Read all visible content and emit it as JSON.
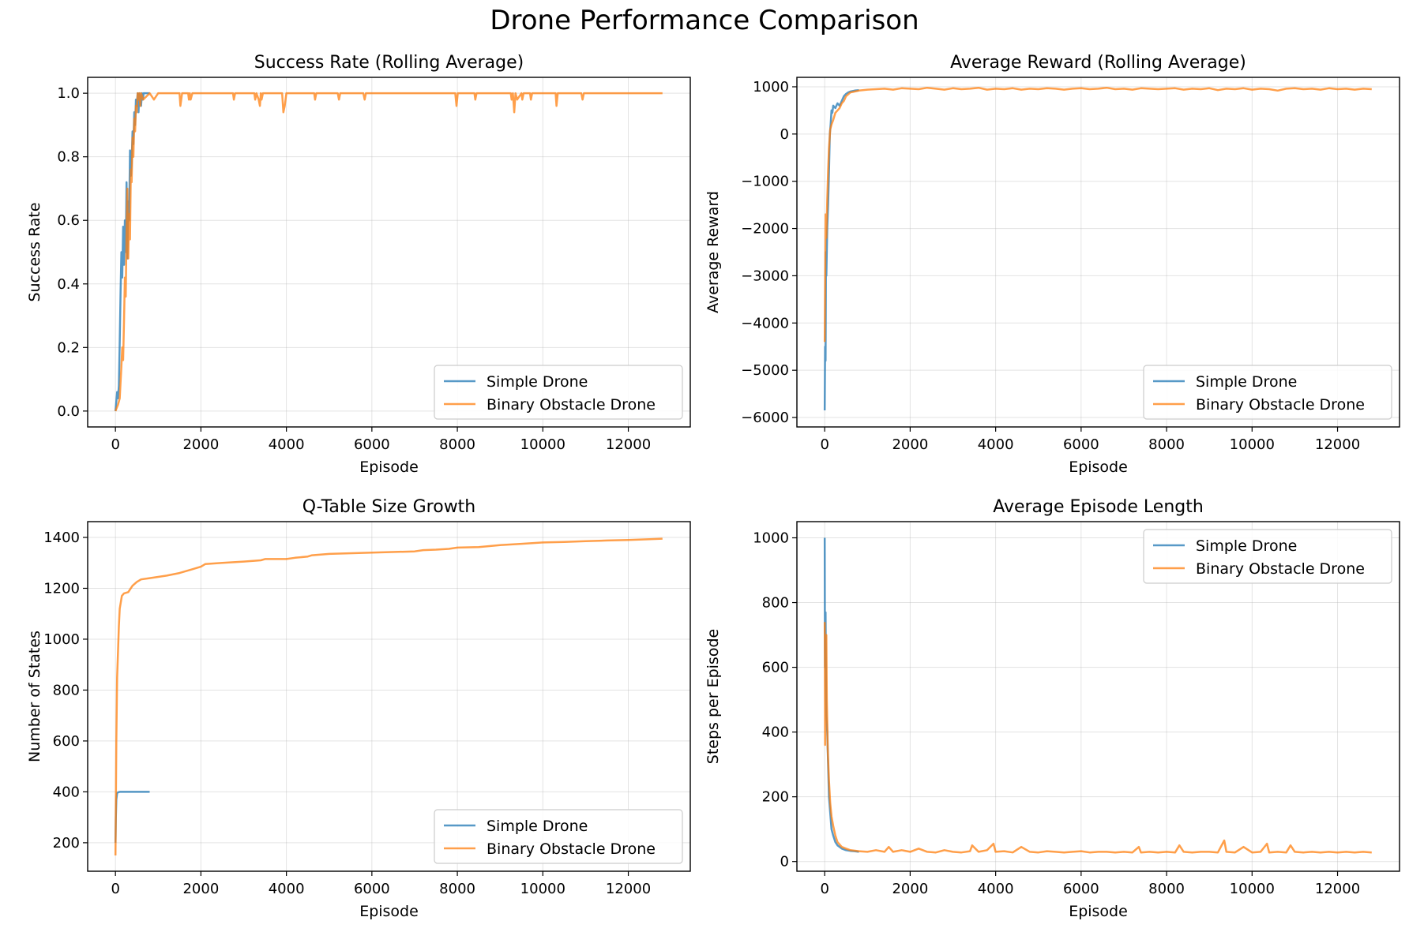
{
  "figure": {
    "title": "Drone Performance Comparison"
  },
  "colors": {
    "simple": "#1f77b4",
    "binary": "#ff7f0e",
    "grid": "#b0b0b0"
  },
  "chart_data": [
    {
      "type": "line",
      "title": "Success Rate (Rolling Average)",
      "xlabel": "Episode",
      "ylabel": "Success Rate",
      "xlim": [
        -650,
        13450
      ],
      "ylim": [
        -0.05,
        1.05
      ],
      "xticks": [
        0,
        2000,
        4000,
        6000,
        8000,
        10000,
        12000
      ],
      "yticks": [
        0.0,
        0.2,
        0.4,
        0.6,
        0.8,
        1.0
      ],
      "ytick_labels": [
        "0.0",
        "0.2",
        "0.4",
        "0.6",
        "0.8",
        "1.0"
      ],
      "grid": true,
      "legend": "lower right",
      "series": [
        {
          "name": "Simple Drone",
          "x": [
            0,
            40,
            60,
            80,
            100,
            120,
            140,
            160,
            180,
            200,
            220,
            240,
            260,
            280,
            300,
            320,
            340,
            360,
            380,
            400,
            420,
            440,
            460,
            480,
            500,
            520,
            540,
            560,
            580,
            600,
            620,
            640,
            660,
            700,
            800
          ],
          "y": [
            0.0,
            0.06,
            0.04,
            0.08,
            0.22,
            0.38,
            0.5,
            0.42,
            0.58,
            0.46,
            0.6,
            0.5,
            0.72,
            0.48,
            0.66,
            0.6,
            0.82,
            0.74,
            0.78,
            0.88,
            0.84,
            0.94,
            0.9,
            0.98,
            0.96,
            1.0,
            0.94,
            1.0,
            0.98,
            0.96,
            1.0,
            0.98,
            1.0,
            1.0,
            1.0
          ]
        },
        {
          "name": "Binary Obstacle Drone",
          "x": [
            0,
            60,
            100,
            140,
            160,
            180,
            200,
            220,
            240,
            260,
            280,
            300,
            320,
            340,
            360,
            380,
            400,
            420,
            440,
            460,
            480,
            500,
            520,
            540,
            560,
            580,
            600,
            650,
            800,
            900,
            1000,
            1500,
            1520,
            1560,
            1580,
            1700,
            1720,
            1740,
            1760,
            1800,
            2750,
            2770,
            2800,
            3250,
            3270,
            3300,
            3350,
            3380,
            3400,
            3420,
            3450,
            3900,
            3930,
            3960,
            4000,
            4050,
            4650,
            4670,
            4700,
            5200,
            5230,
            5260,
            5800,
            5830,
            5860,
            7950,
            7980,
            8010,
            8400,
            8420,
            8450,
            9250,
            9270,
            9300,
            9330,
            9360,
            9400,
            9500,
            9520,
            9550,
            9700,
            9720,
            9750,
            10300,
            10320,
            10350,
            10900,
            10930,
            10960,
            12800
          ],
          "y": [
            0.0,
            0.02,
            0.04,
            0.14,
            0.2,
            0.16,
            0.28,
            0.42,
            0.36,
            0.56,
            0.7,
            0.48,
            0.62,
            0.54,
            0.76,
            0.72,
            0.86,
            0.8,
            0.92,
            0.88,
            0.96,
            0.94,
            1.0,
            0.98,
            1.0,
            0.96,
            1.0,
            0.98,
            1.0,
            0.98,
            1.0,
            1.0,
            0.96,
            1.0,
            1.0,
            1.0,
            0.98,
            1.0,
            0.98,
            1.0,
            1.0,
            0.98,
            1.0,
            1.0,
            0.98,
            1.0,
            0.98,
            0.96,
            1.0,
            0.98,
            1.0,
            1.0,
            0.94,
            0.96,
            1.0,
            1.0,
            1.0,
            0.98,
            1.0,
            1.0,
            0.98,
            1.0,
            1.0,
            0.98,
            1.0,
            1.0,
            0.96,
            1.0,
            1.0,
            0.98,
            1.0,
            1.0,
            0.98,
            1.0,
            0.94,
            1.0,
            0.98,
            1.0,
            0.98,
            1.0,
            1.0,
            0.98,
            1.0,
            1.0,
            0.96,
            1.0,
            1.0,
            0.98,
            1.0,
            1.0
          ]
        }
      ]
    },
    {
      "type": "line",
      "title": "Average Reward (Rolling Average)",
      "xlabel": "Episode",
      "ylabel": "Average Reward",
      "xlim": [
        -650,
        13450
      ],
      "ylim": [
        -6200,
        1200
      ],
      "xticks": [
        0,
        2000,
        4000,
        6000,
        8000,
        10000,
        12000
      ],
      "yticks": [
        -6000,
        -5000,
        -4000,
        -3000,
        -2000,
        -1000,
        0,
        1000
      ],
      "ytick_labels": [
        "−6000",
        "−5000",
        "−4000",
        "−3000",
        "−2000",
        "−1000",
        "0",
        "1000"
      ],
      "grid": true,
      "legend": "lower right",
      "series": [
        {
          "name": "Simple Drone",
          "x": [
            0,
            10,
            20,
            30,
            40,
            60,
            80,
            100,
            120,
            140,
            160,
            180,
            200,
            250,
            300,
            350,
            400,
            450,
            500,
            550,
            600,
            700,
            800
          ],
          "y": [
            -5850,
            -4500,
            -4800,
            -2500,
            -3000,
            -2000,
            -1500,
            -800,
            0,
            200,
            500,
            450,
            600,
            550,
            650,
            600,
            700,
            800,
            850,
            880,
            900,
            920,
            930
          ]
        },
        {
          "name": "Binary Obstacle Drone",
          "x": [
            0,
            20,
            40,
            60,
            80,
            100,
            130,
            160,
            200,
            250,
            300,
            350,
            400,
            450,
            500,
            600,
            700,
            800,
            1000,
            1200,
            1400,
            1600,
            1800,
            2000,
            2200,
            2400,
            2600,
            2800,
            3000,
            3200,
            3400,
            3600,
            3800,
            4000,
            4200,
            4400,
            4600,
            4800,
            5000,
            5200,
            5400,
            5600,
            5800,
            6000,
            6200,
            6400,
            6600,
            6800,
            7000,
            7200,
            7400,
            7600,
            7800,
            8000,
            8200,
            8400,
            8600,
            8800,
            9000,
            9200,
            9400,
            9600,
            9800,
            10000,
            10200,
            10400,
            10600,
            10800,
            11000,
            11200,
            11400,
            11600,
            11800,
            12000,
            12200,
            12400,
            12600,
            12800
          ],
          "y": [
            -4400,
            -1700,
            -2200,
            -1400,
            -800,
            -300,
            100,
            200,
            300,
            450,
            500,
            550,
            650,
            700,
            800,
            880,
            900,
            920,
            940,
            950,
            960,
            940,
            970,
            960,
            950,
            980,
            960,
            940,
            970,
            950,
            960,
            980,
            940,
            960,
            950,
            970,
            940,
            960,
            950,
            970,
            960,
            940,
            960,
            970,
            950,
            960,
            980,
            950,
            960,
            940,
            970,
            960,
            950,
            960,
            970,
            940,
            960,
            950,
            970,
            930,
            960,
            950,
            970,
            940,
            960,
            950,
            920,
            960,
            970,
            950,
            960,
            940,
            970,
            950,
            960,
            940,
            960,
            950
          ]
        }
      ]
    },
    {
      "type": "line",
      "title": "Q-Table Size Growth",
      "xlabel": "Episode",
      "ylabel": "Number of States",
      "xlim": [
        -650,
        13450
      ],
      "ylim": [
        88,
        1462
      ],
      "xticks": [
        0,
        2000,
        4000,
        6000,
        8000,
        10000,
        12000
      ],
      "yticks": [
        200,
        400,
        600,
        800,
        1000,
        1200,
        1400
      ],
      "ytick_labels": [
        "200",
        "400",
        "600",
        "800",
        "1000",
        "1200",
        "1400"
      ],
      "grid": true,
      "legend": "lower right",
      "series": [
        {
          "name": "Simple Drone",
          "x": [
            0,
            10,
            20,
            40,
            60,
            100,
            200,
            400,
            800
          ],
          "y": [
            200,
            300,
            370,
            395,
            398,
            400,
            400,
            400,
            400
          ]
        },
        {
          "name": "Binary Obstacle Drone",
          "x": [
            0,
            20,
            40,
            60,
            80,
            100,
            150,
            200,
            300,
            400,
            500,
            600,
            800,
            1000,
            1200,
            1500,
            1800,
            2000,
            2100,
            2500,
            3000,
            3400,
            3500,
            4000,
            4200,
            4500,
            4600,
            5000,
            6000,
            7000,
            7200,
            7500,
            7800,
            8000,
            8500,
            9000,
            9500,
            10000,
            10500,
            11000,
            11500,
            12000,
            12500,
            12800
          ],
          "y": [
            150,
            600,
            850,
            950,
            1050,
            1120,
            1170,
            1180,
            1185,
            1210,
            1225,
            1235,
            1240,
            1245,
            1250,
            1260,
            1275,
            1285,
            1295,
            1300,
            1305,
            1310,
            1315,
            1315,
            1320,
            1325,
            1330,
            1335,
            1340,
            1345,
            1350,
            1352,
            1355,
            1360,
            1362,
            1370,
            1375,
            1380,
            1382,
            1385,
            1388,
            1390,
            1393,
            1395
          ]
        }
      ]
    },
    {
      "type": "line",
      "title": "Average Episode Length",
      "xlabel": "Episode",
      "ylabel": "Steps per Episode",
      "xlim": [
        -650,
        13450
      ],
      "ylim": [
        -30,
        1050
      ],
      "xticks": [
        0,
        2000,
        4000,
        6000,
        8000,
        10000,
        12000
      ],
      "yticks": [
        0,
        200,
        400,
        600,
        800,
        1000
      ],
      "ytick_labels": [
        "0",
        "200",
        "400",
        "600",
        "800",
        "1000"
      ],
      "grid": true,
      "legend": "upper right",
      "series": [
        {
          "name": "Simple Drone",
          "x": [
            0,
            5,
            10,
            20,
            30,
            40,
            60,
            80,
            100,
            130,
            160,
            200,
            250,
            300,
            400,
            500,
            600,
            700,
            800
          ],
          "y": [
            1000,
            760,
            600,
            770,
            550,
            450,
            400,
            300,
            200,
            150,
            100,
            80,
            60,
            50,
            40,
            35,
            33,
            32,
            30
          ]
        },
        {
          "name": "Binary Obstacle Drone",
          "x": [
            0,
            10,
            20,
            30,
            40,
            50,
            70,
            100,
            130,
            160,
            200,
            250,
            300,
            400,
            500,
            600,
            800,
            1000,
            1200,
            1400,
            1500,
            1600,
            1800,
            2000,
            2200,
            2400,
            2600,
            2800,
            3000,
            3200,
            3400,
            3450,
            3600,
            3800,
            3950,
            4000,
            4200,
            4400,
            4600,
            4800,
            5000,
            5200,
            5400,
            5600,
            5800,
            6000,
            6200,
            6400,
            6600,
            6800,
            7000,
            7200,
            7350,
            7400,
            7600,
            7800,
            8000,
            8200,
            8300,
            8400,
            8600,
            8800,
            9000,
            9200,
            9350,
            9400,
            9600,
            9800,
            10000,
            10200,
            10350,
            10400,
            10600,
            10800,
            10900,
            11000,
            11200,
            11400,
            11600,
            11800,
            12000,
            12200,
            12400,
            12600,
            12800
          ],
          "y": [
            740,
            360,
            620,
            430,
            700,
            500,
            350,
            250,
            180,
            140,
            110,
            80,
            60,
            45,
            40,
            35,
            32,
            30,
            35,
            30,
            45,
            30,
            35,
            30,
            40,
            30,
            28,
            35,
            30,
            28,
            32,
            50,
            30,
            35,
            55,
            30,
            32,
            28,
            45,
            30,
            28,
            32,
            30,
            28,
            30,
            32,
            28,
            30,
            30,
            28,
            30,
            28,
            45,
            28,
            30,
            28,
            30,
            28,
            50,
            30,
            28,
            30,
            30,
            28,
            65,
            30,
            28,
            45,
            28,
            30,
            55,
            28,
            30,
            28,
            50,
            30,
            28,
            30,
            28,
            30,
            28,
            30,
            28,
            30,
            28
          ]
        }
      ]
    }
  ]
}
